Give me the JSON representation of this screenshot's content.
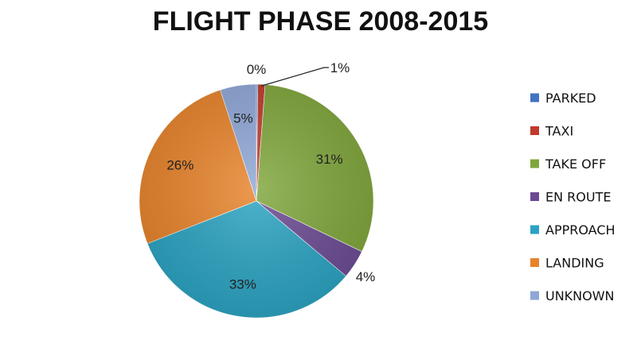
{
  "chart_data": {
    "type": "pie",
    "title": "FLIGHT PHASE 2008-2015",
    "legend_position": "right",
    "slices": [
      {
        "name": "PARKED",
        "value": 0,
        "label": "0%",
        "color": "#4472c4"
      },
      {
        "name": "TAXI",
        "value": 1,
        "label": "1%",
        "color": "#c0392b"
      },
      {
        "name": "TAKE OFF",
        "value": 31,
        "label": "31%",
        "color": "#7fa63a"
      },
      {
        "name": "EN ROUTE",
        "value": 4,
        "label": "4%",
        "color": "#6b4a93"
      },
      {
        "name": "APPROACH",
        "value": 33,
        "label": "33%",
        "color": "#2aa3c2"
      },
      {
        "name": "LANDING",
        "value": 26,
        "label": "26%",
        "color": "#e8832a"
      },
      {
        "name": "UNKNOWN",
        "value": 5,
        "label": "5%",
        "color": "#8ea7d6"
      }
    ]
  }
}
